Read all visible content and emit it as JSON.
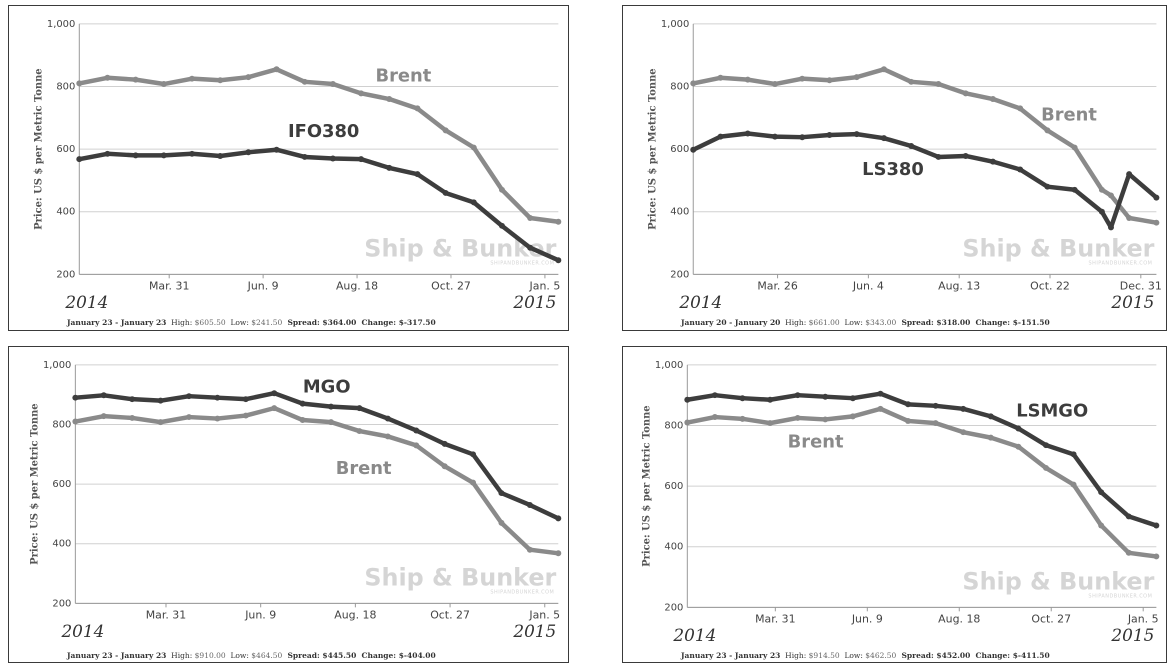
{
  "watermark": {
    "brand": "Ship & Bunker",
    "url": "SHIPANDBUNKER.COM"
  },
  "colors": {
    "brent": "#8a8a8a",
    "product": "#3d3d3d",
    "grid": "#d0d0d0"
  },
  "chart_data": [
    {
      "type": "line",
      "ylabel": "Price: US $ per Metric Tonne",
      "ylim": [
        200,
        1000
      ],
      "yticks": [
        "200",
        "400",
        "600",
        "800",
        "1,000"
      ],
      "xticks": [
        "Mar. 31",
        "Jun. 9",
        "Aug. 18",
        "Oct. 27",
        "Jan. 5"
      ],
      "year_start": "2014",
      "year_end": "2015",
      "x": [
        "2014-01-23",
        "2014-02-13",
        "2014-03-06",
        "2014-03-27",
        "2014-04-17",
        "2014-05-08",
        "2014-05-29",
        "2014-06-19",
        "2014-07-10",
        "2014-07-31",
        "2014-08-21",
        "2014-09-11",
        "2014-10-02",
        "2014-10-23",
        "2014-11-13",
        "2014-12-04",
        "2014-12-25",
        "2015-01-15"
      ],
      "series": [
        {
          "name": "Brent",
          "values": [
            810,
            828,
            822,
            808,
            825,
            820,
            830,
            855,
            815,
            808,
            778,
            760,
            730,
            660,
            605,
            470,
            380,
            368
          ]
        },
        {
          "name": "IFO380",
          "values": [
            568,
            585,
            580,
            580,
            585,
            578,
            590,
            598,
            575,
            570,
            568,
            540,
            520,
            460,
            430,
            355,
            285,
            245
          ]
        }
      ],
      "stats": {
        "range": "January 23 - January 23",
        "high_label": "High:",
        "high": "$605.50",
        "low_label": "Low:",
        "low": "$241.50",
        "spread_label": "Spread:",
        "spread": "$364.00",
        "change_label": "Change:",
        "change": "$-317.50"
      }
    },
    {
      "type": "line",
      "ylabel": "Price: US $ per Metric Tonne",
      "ylim": [
        200,
        1000
      ],
      "yticks": [
        "200",
        "400",
        "600",
        "800",
        "1,000"
      ],
      "xticks": [
        "Mar. 26",
        "Jun. 4",
        "Aug. 13",
        "Oct. 22",
        "Dec. 31"
      ],
      "year_start": "2014",
      "year_end": "2015",
      "x": [
        "2014-01-20",
        "2014-02-10",
        "2014-03-03",
        "2014-03-24",
        "2014-04-14",
        "2014-05-05",
        "2014-05-26",
        "2014-06-16",
        "2014-07-07",
        "2014-07-28",
        "2014-08-18",
        "2014-09-08",
        "2014-09-29",
        "2014-10-20",
        "2014-11-10",
        "2014-12-01",
        "2014-12-08",
        "2014-12-22",
        "2015-01-12"
      ],
      "series": [
        {
          "name": "Brent",
          "values": [
            810,
            828,
            822,
            808,
            825,
            820,
            830,
            855,
            815,
            808,
            778,
            760,
            730,
            660,
            605,
            470,
            452,
            380,
            365
          ]
        },
        {
          "name": "LS380",
          "values": [
            598,
            640,
            650,
            640,
            638,
            645,
            648,
            635,
            610,
            575,
            578,
            560,
            535,
            480,
            470,
            400,
            350,
            520,
            445
          ]
        }
      ],
      "stats": {
        "range": "January 20 - January 20",
        "high_label": "High:",
        "high": "$661.00",
        "low_label": "Low:",
        "low": "$343.00",
        "spread_label": "Spread:",
        "spread": "$318.00",
        "change_label": "Change:",
        "change": "$-151.50"
      }
    },
    {
      "type": "line",
      "ylabel": "Price: US $ per Metric Tonne",
      "ylim": [
        200,
        1000
      ],
      "yticks": [
        "200",
        "400",
        "600",
        "800",
        "1,000"
      ],
      "xticks": [
        "Mar. 31",
        "Jun. 9",
        "Aug. 18",
        "Oct. 27",
        "Jan. 5"
      ],
      "year_start": "2014",
      "year_end": "2015",
      "x": [
        "2014-01-23",
        "2014-02-13",
        "2014-03-06",
        "2014-03-27",
        "2014-04-17",
        "2014-05-08",
        "2014-05-29",
        "2014-06-19",
        "2014-07-10",
        "2014-07-31",
        "2014-08-21",
        "2014-09-11",
        "2014-10-02",
        "2014-10-23",
        "2014-11-13",
        "2014-12-04",
        "2014-12-25",
        "2015-01-15"
      ],
      "series": [
        {
          "name": "MGO",
          "values": [
            890,
            898,
            885,
            880,
            895,
            890,
            885,
            905,
            870,
            860,
            855,
            820,
            780,
            735,
            700,
            570,
            530,
            485
          ]
        },
        {
          "name": "Brent",
          "values": [
            810,
            828,
            822,
            808,
            825,
            820,
            830,
            855,
            815,
            808,
            778,
            760,
            730,
            660,
            605,
            470,
            380,
            368
          ]
        }
      ],
      "stats": {
        "range": "January 23 - January 23",
        "high_label": "High:",
        "high": "$910.00",
        "low_label": "Low:",
        "low": "$464.50",
        "spread_label": "Spread:",
        "spread": "$445.50",
        "change_label": "Change:",
        "change": "$-404.00"
      }
    },
    {
      "type": "line",
      "ylabel": "Price: US $ per Metric Tonne",
      "ylim": [
        200,
        1000
      ],
      "yticks": [
        "200",
        "400",
        "600",
        "800",
        "1,000"
      ],
      "xticks": [
        "Mar. 31",
        "Jun. 9",
        "Aug. 18",
        "Oct. 27",
        "Jan. 5"
      ],
      "year_start": "2014",
      "year_end": "2015",
      "x": [
        "2014-01-23",
        "2014-02-13",
        "2014-03-06",
        "2014-03-27",
        "2014-04-17",
        "2014-05-08",
        "2014-05-29",
        "2014-06-19",
        "2014-07-10",
        "2014-07-31",
        "2014-08-21",
        "2014-09-11",
        "2014-10-02",
        "2014-10-23",
        "2014-11-13",
        "2014-12-04",
        "2014-12-25",
        "2015-01-15"
      ],
      "series": [
        {
          "name": "LSMGO",
          "values": [
            885,
            900,
            890,
            885,
            900,
            895,
            890,
            905,
            870,
            865,
            855,
            830,
            790,
            735,
            705,
            580,
            500,
            470
          ]
        },
        {
          "name": "Brent",
          "values": [
            810,
            828,
            822,
            808,
            825,
            820,
            830,
            855,
            815,
            808,
            778,
            760,
            730,
            660,
            605,
            470,
            380,
            368
          ]
        }
      ],
      "stats": {
        "range": "January 23 - January 23",
        "high_label": "High:",
        "high": "$914.50",
        "low_label": "Low:",
        "low": "$462.50",
        "spread_label": "Spread:",
        "spread": "$452.00",
        "change_label": "Change:",
        "change": "$-411.50"
      }
    }
  ]
}
